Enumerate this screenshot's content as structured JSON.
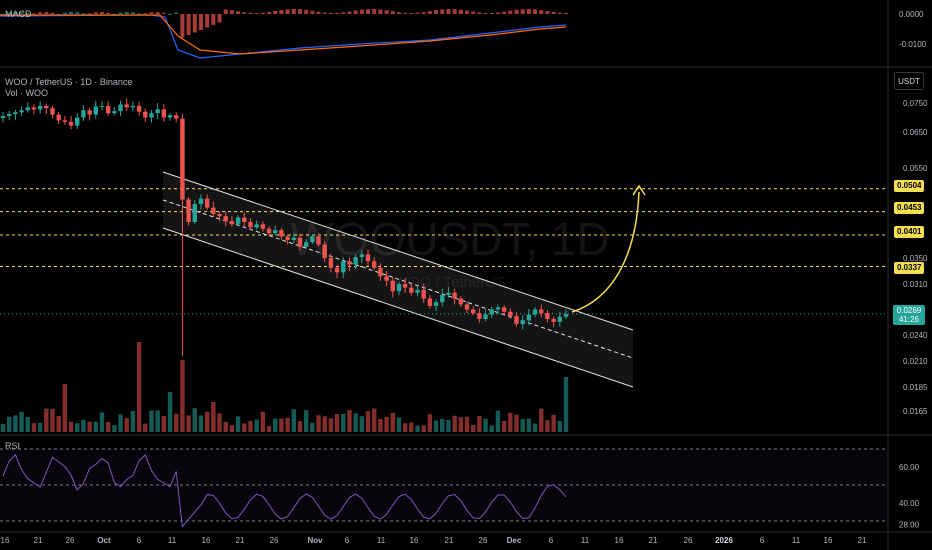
{
  "header": {
    "symbol_line": "WOO / TetherUS · 1D · Binance",
    "volume_label": "Vol · WOO",
    "macd_label": "MACD",
    "rsi_label": "RSI",
    "unit": "USDT",
    "watermark_main": "WOOUSDT, 1D",
    "watermark_sub": "WOO / TetherUS"
  },
  "price_axis": {
    "ticks": [
      "0.0750",
      "0.0650",
      "0.0550",
      "0.0350",
      "0.0310",
      "0.0240",
      "0.0210",
      "0.0185",
      "0.0165"
    ],
    "tick_values": [
      0.075,
      0.065,
      0.055,
      0.035,
      0.031,
      0.024,
      0.021,
      0.0185,
      0.0165
    ]
  },
  "level_tags": [
    "0.0504",
    "0.0453",
    "0.0401",
    "0.0337"
  ],
  "level_values": [
    0.0504,
    0.0453,
    0.0401,
    0.0337
  ],
  "current_price": {
    "price": "0.0269",
    "countdown": "41:26",
    "value": 0.0269
  },
  "macd_axis": {
    "ticks": [
      "0.0000",
      "-0.0100"
    ]
  },
  "rsi_axis": {
    "ticks": [
      "60.00",
      "40.00",
      "28.00"
    ],
    "values": [
      60,
      40,
      28
    ]
  },
  "time_axis": {
    "labels": [
      "16",
      "21",
      "26",
      "Oct",
      "6",
      "11",
      "16",
      "21",
      "26",
      "Nov",
      "6",
      "11",
      "16",
      "21",
      "26",
      "Dec",
      "6",
      "11",
      "16",
      "21",
      "26",
      "2026",
      "6",
      "11",
      "16",
      "21"
    ]
  },
  "colors": {
    "up": "#26a69a",
    "down": "#ef5350",
    "level": "#f5de50",
    "macd": "#2962ff",
    "signal": "#ff6d00",
    "rsi": "#7e57c2"
  },
  "chart_data": {
    "type": "candlestick",
    "title": "WOO / TetherUS · 1D · Binance",
    "interval": "1D",
    "ylabel": "USDT",
    "ylim": [
      0.0155,
      0.085
    ],
    "close_series_approx": [
      0.0705,
      0.0712,
      0.0718,
      0.0725,
      0.0735,
      0.0728,
      0.074,
      0.0732,
      0.071,
      0.069,
      0.0685,
      0.0672,
      0.07,
      0.0725,
      0.071,
      0.0738,
      0.074,
      0.0715,
      0.0722,
      0.0745,
      0.0735,
      0.074,
      0.072,
      0.07,
      0.0715,
      0.0728,
      0.07,
      0.0708,
      0.0696,
      0.048,
      0.043,
      0.047,
      0.0482,
      0.0462,
      0.0448,
      0.0443,
      0.0432,
      0.0425,
      0.044,
      0.043,
      0.0418,
      0.0425,
      0.0415,
      0.0405,
      0.0412,
      0.0398,
      0.039,
      0.0395,
      0.0375,
      0.0385,
      0.0398,
      0.038,
      0.035,
      0.0335,
      0.0328,
      0.0345,
      0.034,
      0.0352,
      0.0358,
      0.0345,
      0.0335,
      0.0322,
      0.0315,
      0.03,
      0.031,
      0.0305,
      0.0298,
      0.0302,
      0.029,
      0.028,
      0.0285,
      0.0295,
      0.0298,
      0.029,
      0.0282,
      0.0275,
      0.027,
      0.0262,
      0.0268,
      0.0275,
      0.0278,
      0.0272,
      0.0266,
      0.0255,
      0.026,
      0.0268,
      0.0275,
      0.027,
      0.0262,
      0.0258,
      0.0265,
      0.0269
    ],
    "annotations": {
      "channel": "descending channel",
      "horizontal_levels": [
        0.0504,
        0.0453,
        0.0401,
        0.0337
      ],
      "projection_arrow_target": 0.0504
    },
    "rsi_ylim": [
      25,
      75
    ],
    "grid": false
  }
}
